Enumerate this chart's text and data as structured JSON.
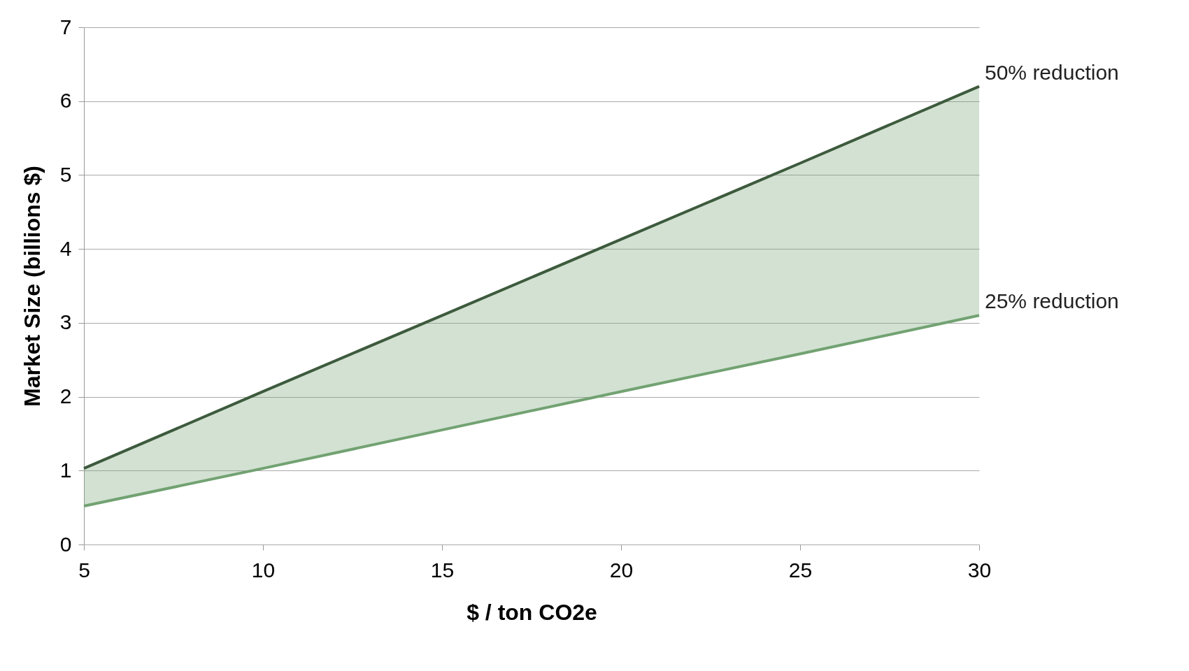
{
  "chart_data": {
    "type": "line",
    "xlabel": "$ / ton CO2e",
    "ylabel": "Market Size (billions $)",
    "x": [
      5,
      10,
      15,
      20,
      25,
      30
    ],
    "series": [
      {
        "name": "50% reduction",
        "color": "#3d5a3d",
        "values": [
          1.03,
          2.07,
          3.1,
          4.13,
          5.16,
          6.2
        ],
        "lower": [
          0.52,
          1.03,
          1.55,
          2.07,
          2.58,
          3.1
        ],
        "upper": [
          1.03,
          2.07,
          3.1,
          4.13,
          5.16,
          6.2
        ]
      },
      {
        "name": "25% reduction",
        "color": "#72a272",
        "values": [
          0.52,
          1.03,
          1.55,
          2.07,
          2.58,
          3.1
        ]
      }
    ],
    "xlim": [
      5,
      30
    ],
    "xticks": [
      5,
      10,
      15,
      20,
      25,
      30
    ],
    "ylim": [
      0,
      7
    ],
    "yticks": [
      0,
      1,
      2,
      3,
      4,
      5,
      6,
      7
    ],
    "grid": "y"
  }
}
